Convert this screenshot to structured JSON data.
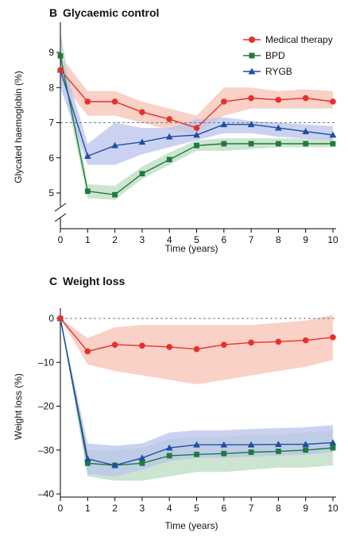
{
  "colors": {
    "medical": "#e8302a",
    "medical_band": "#f7c2b3",
    "bpd": "#1f7a3d",
    "bpd_band": "#b9dcc0",
    "rygb": "#1f4fa3",
    "rygb_band": "#b9c3ec",
    "reference": "#777777"
  },
  "chart_data": [
    {
      "type": "line",
      "panel_letter": "B",
      "title": "Glycaemic control",
      "xlabel": "Time (years)",
      "ylabel": "Glycated haemoglobin (%)",
      "x": [
        0,
        1,
        2,
        3,
        4,
        5,
        6,
        7,
        8,
        9,
        10
      ],
      "xticks": [
        "0",
        "1",
        "2",
        "3",
        "4",
        "5",
        "6",
        "7",
        "8",
        "9",
        "10"
      ],
      "yticks": [
        {
          "v": 5,
          "label": "5"
        },
        {
          "v": 6,
          "label": "6"
        },
        {
          "v": 7,
          "label": "7"
        },
        {
          "v": 8,
          "label": "8"
        },
        {
          "v": 9,
          "label": "9"
        }
      ],
      "ylim": [
        4.5,
        9.7
      ],
      "axis_break": true,
      "reference_line": 7,
      "grid": false,
      "legend_position": "top-right",
      "series": [
        {
          "name": "Medical therapy",
          "key": "medical",
          "marker": "circle",
          "values": [
            8.5,
            7.6,
            7.6,
            7.3,
            7.1,
            6.85,
            7.6,
            7.7,
            7.65,
            7.7,
            7.6
          ],
          "lower": [
            8.2,
            7.2,
            7.2,
            7.0,
            6.8,
            6.7,
            7.2,
            7.4,
            7.4,
            7.4,
            7.4
          ],
          "upper": [
            8.9,
            7.9,
            7.9,
            7.6,
            7.4,
            7.2,
            8.0,
            8.0,
            7.9,
            7.95,
            7.9
          ]
        },
        {
          "name": "BPD",
          "key": "bpd",
          "marker": "square",
          "values": [
            8.9,
            5.05,
            4.95,
            5.55,
            5.95,
            6.35,
            6.4,
            6.4,
            6.4,
            6.4,
            6.4
          ],
          "lower": [
            8.5,
            4.85,
            4.8,
            5.4,
            5.8,
            6.2,
            6.2,
            6.25,
            6.3,
            6.3,
            6.3
          ],
          "upper": [
            9.6,
            5.25,
            5.2,
            5.75,
            6.15,
            6.5,
            6.55,
            6.55,
            6.55,
            6.55,
            6.55
          ]
        },
        {
          "name": "RYGB",
          "key": "rygb",
          "marker": "triangle",
          "values": [
            8.5,
            6.05,
            6.35,
            6.45,
            6.6,
            6.65,
            6.95,
            6.95,
            6.85,
            6.75,
            6.65
          ],
          "lower": [
            8.0,
            5.8,
            5.8,
            6.1,
            6.3,
            6.5,
            6.7,
            6.7,
            6.6,
            6.55,
            6.5
          ],
          "upper": [
            9.0,
            6.4,
            7.0,
            6.85,
            6.85,
            7.1,
            7.15,
            7.05,
            7.0,
            6.95,
            6.9
          ]
        }
      ]
    },
    {
      "type": "line",
      "panel_letter": "C",
      "title": "Weight loss",
      "xlabel": "Time (years)",
      "ylabel": "Weight loss (%)",
      "x": [
        0,
        1,
        2,
        3,
        4,
        5,
        6,
        7,
        8,
        9,
        10
      ],
      "xticks": [
        "0",
        "1",
        "2",
        "3",
        "4",
        "5",
        "6",
        "7",
        "8",
        "9",
        "10"
      ],
      "yticks": [
        {
          "v": 0,
          "label": "0"
        },
        {
          "v": -10,
          "label": "–10"
        },
        {
          "v": -20,
          "label": "–20"
        },
        {
          "v": -30,
          "label": "–30"
        },
        {
          "v": -40,
          "label": "–40"
        }
      ],
      "ylim": [
        -40,
        1
      ],
      "axis_break": false,
      "reference_line": 0,
      "grid": false,
      "series": [
        {
          "name": "Medical therapy",
          "key": "medical",
          "marker": "circle",
          "values": [
            0,
            -7.5,
            -6,
            -6.2,
            -6.5,
            -7,
            -6,
            -5.5,
            -5.3,
            -5,
            -4.3
          ],
          "lower": [
            0,
            -10.5,
            -12,
            -13,
            -14,
            -15,
            -14,
            -13,
            -12,
            -11,
            -9.5
          ],
          "upper": [
            0,
            -4.5,
            -2,
            -1.5,
            -1.5,
            -1.5,
            -1.5,
            -1.5,
            -1,
            -0.5,
            0.8
          ]
        },
        {
          "name": "BPD",
          "key": "bpd",
          "marker": "square",
          "values": [
            0,
            -33,
            -33.5,
            -33,
            -31.3,
            -31,
            -30.8,
            -30.5,
            -30.3,
            -30,
            -29.5
          ],
          "lower": [
            0,
            -36,
            -37,
            -37,
            -36,
            -35,
            -35,
            -34.5,
            -34,
            -34,
            -33.5
          ],
          "upper": [
            0,
            -30,
            -30,
            -29.5,
            -27.5,
            -27,
            -27,
            -26.5,
            -26.5,
            -26,
            -25.5
          ]
        },
        {
          "name": "RYGB",
          "key": "rygb",
          "marker": "triangle",
          "values": [
            0,
            -32,
            -33.5,
            -31.8,
            -29.5,
            -28.8,
            -28.8,
            -28.8,
            -28.7,
            -28.7,
            -28.3
          ],
          "lower": [
            0,
            -35.5,
            -36,
            -34.5,
            -32.5,
            -31.8,
            -31.8,
            -31.5,
            -31.3,
            -31,
            -30.5
          ],
          "upper": [
            0,
            -28.5,
            -29,
            -28.5,
            -26,
            -25.5,
            -25.5,
            -25.2,
            -25,
            -24.8,
            -24.3
          ]
        }
      ]
    }
  ]
}
